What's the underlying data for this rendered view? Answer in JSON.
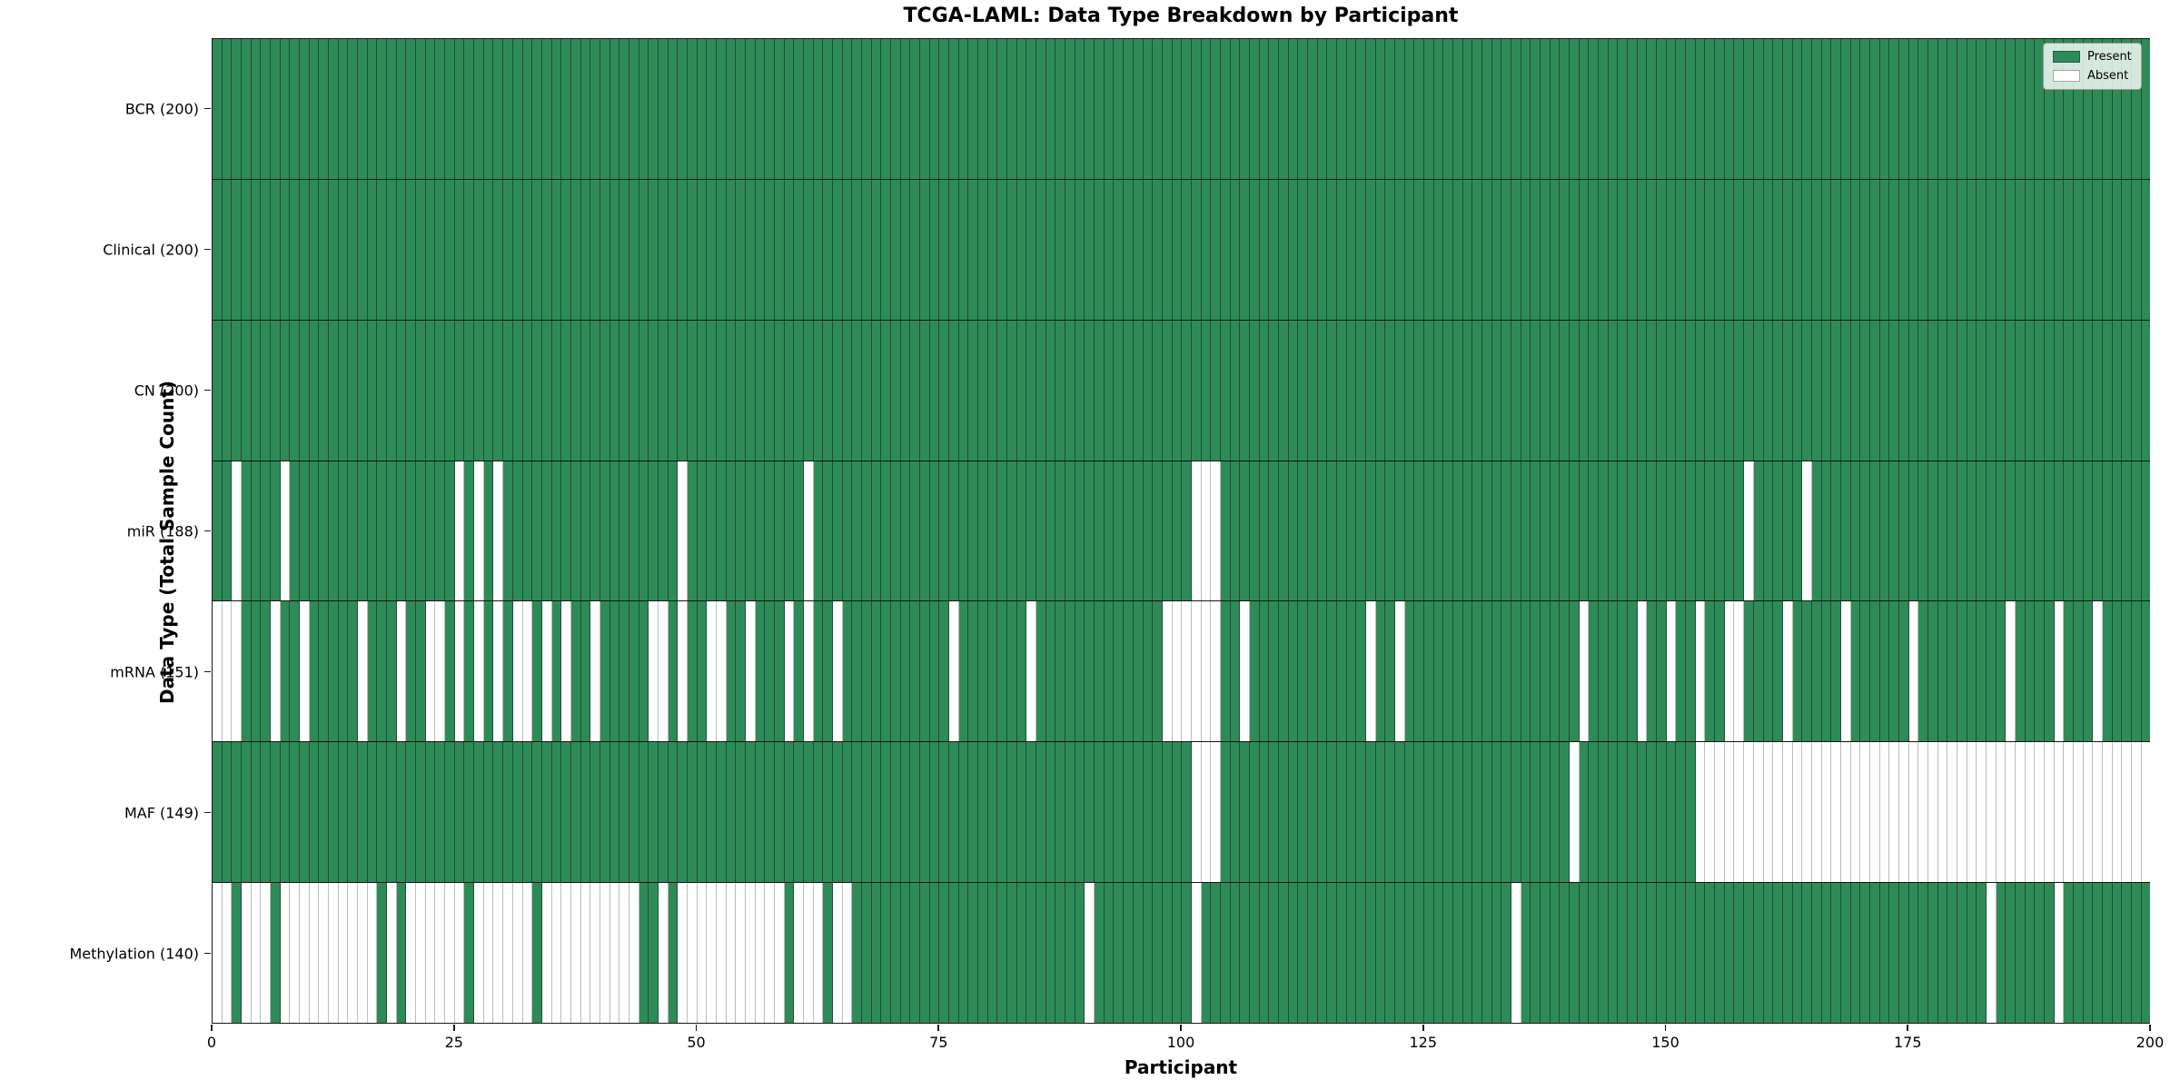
{
  "title": "TCGA-LAML: Data Type Breakdown by Participant",
  "legend": {
    "present_label": "Present",
    "absent_label": "Absent"
  },
  "colors": {
    "present": "#2e8b57",
    "absent": "#ffffff",
    "grid_green": "#1c4f34",
    "grid_white": "#bdbdbd"
  },
  "chart_data": {
    "type": "heatmap",
    "title": "TCGA-LAML: Data Type Breakdown by Participant",
    "xlabel": "Participant",
    "ylabel": "Data Type (Total Sample Count)",
    "x_range": [
      0,
      200
    ],
    "n_participants": 200,
    "x_ticks": [
      0,
      25,
      50,
      75,
      100,
      125,
      150,
      175,
      200
    ],
    "legend_entries": [
      "Present",
      "Absent"
    ],
    "legend_position": "upper right",
    "cell_states": [
      "present",
      "absent"
    ],
    "rows": [
      {
        "label": "BCR (200)",
        "name": "BCR",
        "present_count": 200,
        "absent_participants": []
      },
      {
        "label": "Clinical (200)",
        "name": "Clinical",
        "present_count": 200,
        "absent_participants": []
      },
      {
        "label": "CN (200)",
        "name": "CN",
        "present_count": 200,
        "absent_participants": []
      },
      {
        "label": "miR (188)",
        "name": "miR",
        "present_count": 188,
        "absent_participants": [
          2,
          7,
          25,
          27,
          29,
          48,
          61,
          101,
          102,
          103,
          158,
          164
        ]
      },
      {
        "label": "mRNA (151)",
        "name": "mRNA",
        "present_count": 151,
        "absent_participants": [
          0,
          1,
          2,
          6,
          9,
          15,
          19,
          22,
          23,
          25,
          27,
          29,
          31,
          32,
          34,
          36,
          39,
          45,
          46,
          48,
          51,
          52,
          55,
          59,
          61,
          64,
          76,
          84,
          98,
          99,
          100,
          101,
          102,
          103,
          106,
          119,
          122,
          141,
          147,
          150,
          153,
          156,
          157,
          162,
          168,
          175,
          185,
          190,
          194
        ]
      },
      {
        "label": "MAF (149)",
        "name": "MAF",
        "present_count": 149,
        "absent_participants": [
          101,
          102,
          103,
          140,
          153,
          154,
          155,
          156,
          157,
          158,
          159,
          160,
          161,
          162,
          163,
          164,
          165,
          166,
          167,
          168,
          169,
          170,
          171,
          172,
          173,
          174,
          175,
          176,
          177,
          178,
          179,
          180,
          181,
          182,
          183,
          184,
          185,
          186,
          187,
          188,
          189,
          190,
          191,
          192,
          193,
          194,
          195,
          196,
          197,
          198,
          199
        ]
      },
      {
        "label": "Methylation (140)",
        "name": "Methylation",
        "present_count": 140,
        "absent_participants": [
          0,
          1,
          3,
          4,
          5,
          7,
          8,
          9,
          10,
          11,
          12,
          13,
          14,
          15,
          16,
          18,
          20,
          21,
          22,
          23,
          24,
          25,
          27,
          28,
          29,
          30,
          31,
          32,
          34,
          35,
          36,
          37,
          38,
          39,
          40,
          41,
          42,
          43,
          46,
          48,
          49,
          50,
          51,
          52,
          53,
          54,
          55,
          56,
          57,
          58,
          60,
          61,
          62,
          64,
          65,
          90,
          101,
          134,
          183,
          190
        ]
      }
    ]
  }
}
